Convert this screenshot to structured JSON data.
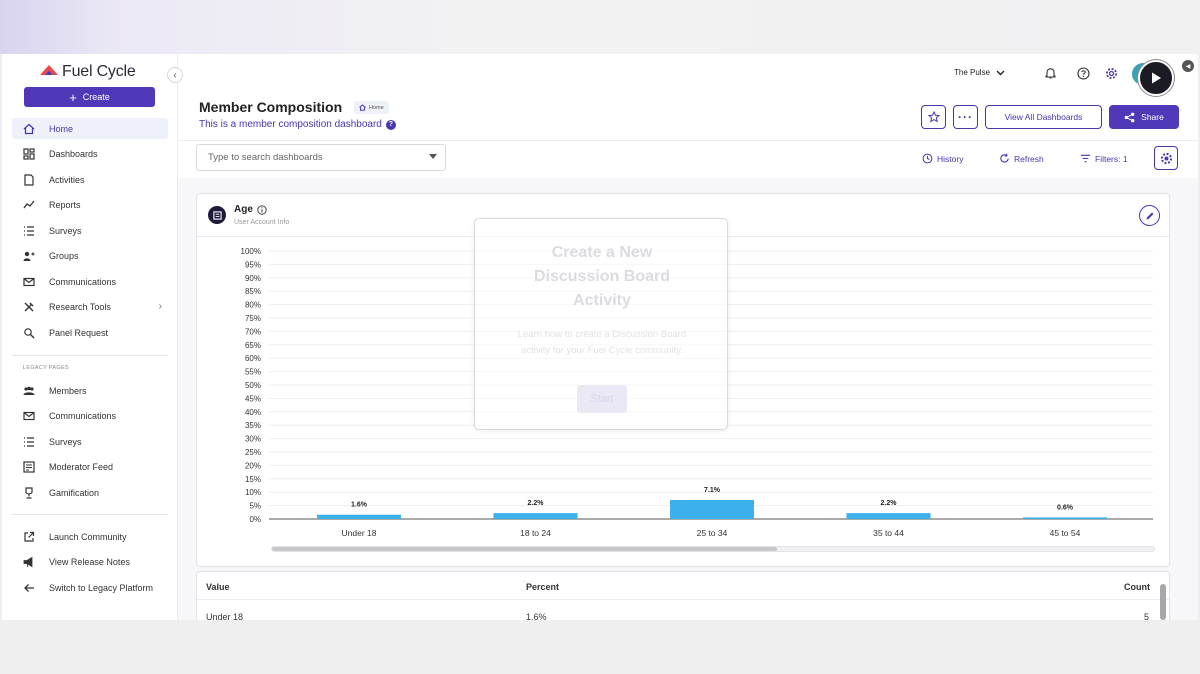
{
  "brand": {
    "name": "Fuel Cycle"
  },
  "sidebar": {
    "create_label": "Create",
    "items": [
      {
        "label": "Home",
        "icon": "home-icon"
      },
      {
        "label": "Dashboards",
        "icon": "dashboards-icon"
      },
      {
        "label": "Activities",
        "icon": "activities-icon"
      },
      {
        "label": "Reports",
        "icon": "reports-icon"
      },
      {
        "label": "Surveys",
        "icon": "surveys-icon"
      },
      {
        "label": "Groups",
        "icon": "groups-icon"
      },
      {
        "label": "Communications",
        "icon": "mail-icon"
      },
      {
        "label": "Research Tools",
        "icon": "tools-icon"
      },
      {
        "label": "Panel Request",
        "icon": "panel-request-icon"
      }
    ],
    "legacy_header": "LEGACY PAGES",
    "legacy_items": [
      {
        "label": "Members",
        "icon": "members-icon"
      },
      {
        "label": "Communications",
        "icon": "mail-icon"
      },
      {
        "label": "Surveys",
        "icon": "surveys-icon"
      },
      {
        "label": "Moderator Feed",
        "icon": "moderator-feed-icon"
      },
      {
        "label": "Gamification",
        "icon": "trophy-icon"
      }
    ],
    "bottom_items": [
      {
        "label": "Launch Community",
        "icon": "external-link-icon"
      },
      {
        "label": "View Release Notes",
        "icon": "megaphone-icon"
      },
      {
        "label": "Switch to Legacy Platform",
        "icon": "arrow-left-icon"
      }
    ]
  },
  "header": {
    "community": "The Pulse"
  },
  "page": {
    "title": "Member Composition",
    "breadcrumb": "Home",
    "subtitle": "This is a member composition dashboard",
    "view_all_label": "View All Dashboards",
    "share_label": "Share",
    "search_placeholder": "Type to search dashboards",
    "history_label": "History",
    "refresh_label": "Refresh",
    "filters_label": "Filters: 1"
  },
  "card": {
    "title": "Age",
    "subtitle": "User Account Info"
  },
  "chart_data": {
    "type": "bar",
    "categories": [
      "Under 18",
      "18 to 24",
      "25 to 34",
      "35 to 44",
      "45 to 54"
    ],
    "values": [
      1.6,
      2.2,
      7.1,
      2.2,
      0.6
    ],
    "value_labels": [
      "1.6%",
      "2.2%",
      "7.1%",
      "2.2%",
      "0.6%"
    ],
    "ylim": [
      0,
      100
    ],
    "yticks": [
      "0%",
      "5%",
      "10%",
      "15%",
      "20%",
      "25%",
      "30%",
      "35%",
      "40%",
      "45%",
      "50%",
      "55%",
      "60%",
      "65%",
      "70%",
      "75%",
      "80%",
      "85%",
      "90%",
      "95%",
      "100%"
    ],
    "grid": true,
    "bar_color": "#3bb0ea"
  },
  "overlay": {
    "title": "Create a New Discussion Board Activity",
    "text": "Learn how to create a Discussion Board activity for your Fuel Cycle community.",
    "button": "Start"
  },
  "table": {
    "headers": [
      "Value",
      "Percent",
      "Count"
    ],
    "rows": [
      {
        "value": "Under 18",
        "percent": "1.6%",
        "count": "5"
      }
    ]
  },
  "colors": {
    "accent": "#5138b8",
    "bar": "#3bb0ea"
  }
}
